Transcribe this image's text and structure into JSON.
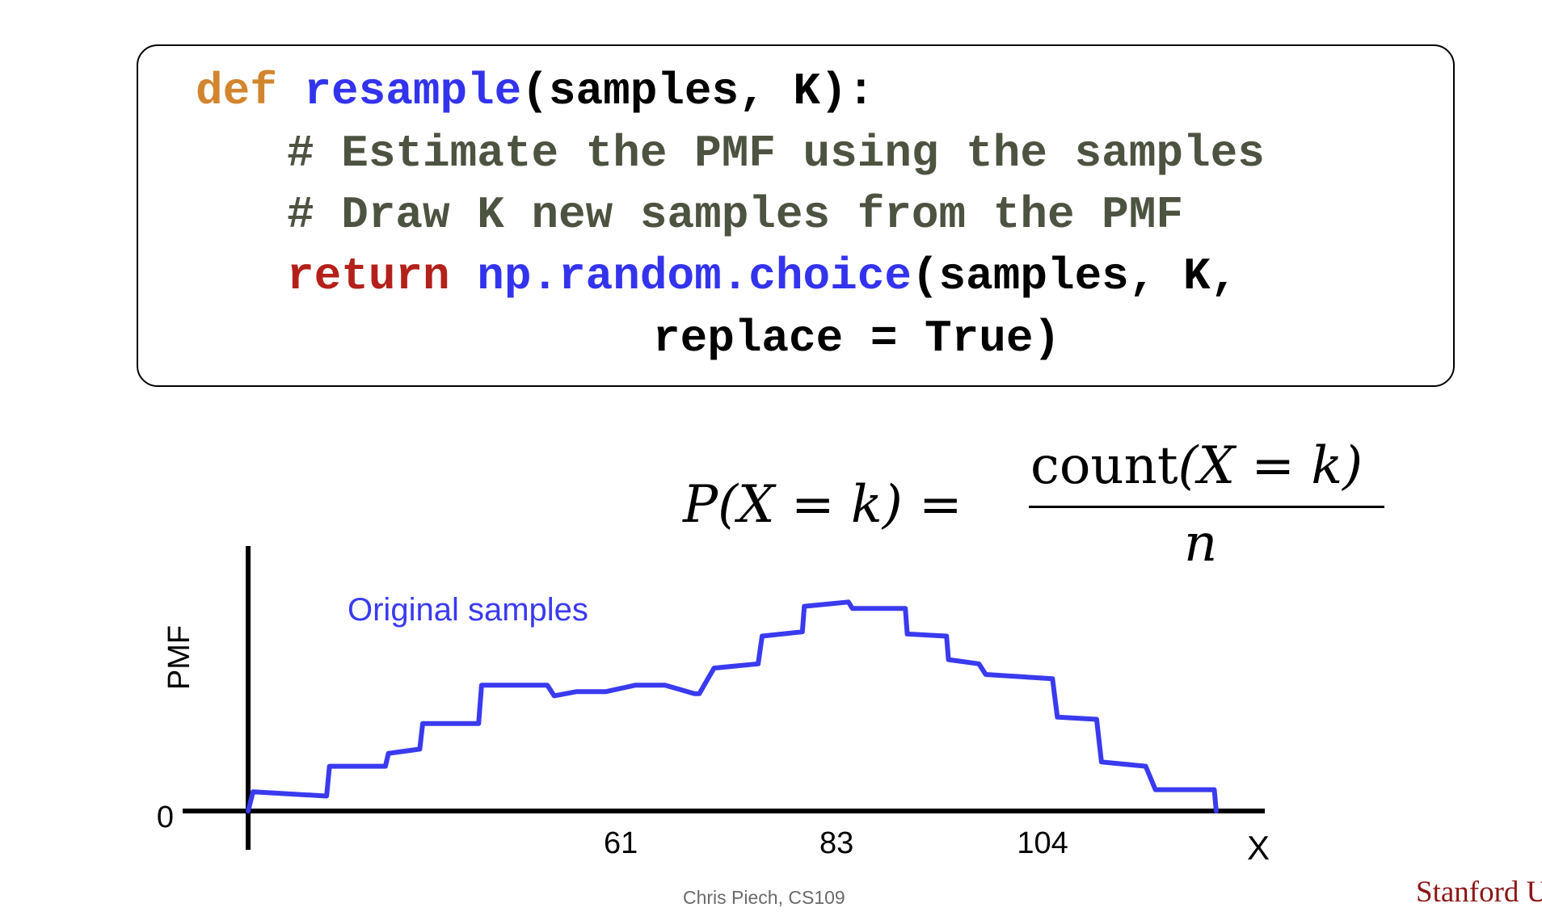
{
  "code": {
    "line1": {
      "kw": "def ",
      "fn": "resample",
      "rest": "(samples, K):"
    },
    "line2": "# Estimate the PMF using the samples",
    "line3": "# Draw K new samples from the PMF",
    "line4": {
      "kw": "return ",
      "fn": "np.random.choice",
      "rest": "(samples, K,"
    },
    "line5": "replace = True)"
  },
  "formula": {
    "lhs": "P(X = k) =",
    "numerator_func": "count",
    "numerator_args": "(X = k)",
    "denominator": "n"
  },
  "chart_data": {
    "type": "line",
    "ylabel": "PMF",
    "xlabel": "X",
    "y_tick_label": "0",
    "x_tick_labels": [
      "61",
      "83",
      "104"
    ],
    "x_ticks": [
      61,
      83,
      104
    ],
    "xlim": [
      23,
      125
    ],
    "ylim": [
      0,
      1
    ],
    "series": [
      {
        "name": "Original samples",
        "color": "#3a3af0",
        "x": [
          23.0,
          23.5,
          31.0,
          31.3,
          37.0,
          37.3,
          40.5,
          40.8,
          46.5,
          46.8,
          53.5,
          54.2,
          56.5,
          59.5,
          62.5,
          65.5,
          68.5,
          69.0,
          70.5,
          75.0,
          75.4,
          79.5,
          79.7,
          84.2,
          84.6,
          90.0,
          90.2,
          94.2,
          94.4,
          97.5,
          98.2,
          105.0,
          105.5,
          109.5,
          110.0,
          114.5,
          115.5,
          121.5,
          121.7
        ],
        "y": [
          0.0,
          0.09,
          0.07,
          0.21,
          0.21,
          0.27,
          0.29,
          0.41,
          0.41,
          0.59,
          0.59,
          0.54,
          0.56,
          0.56,
          0.59,
          0.59,
          0.55,
          0.55,
          0.67,
          0.69,
          0.82,
          0.84,
          0.96,
          0.98,
          0.95,
          0.95,
          0.83,
          0.82,
          0.71,
          0.69,
          0.64,
          0.62,
          0.44,
          0.43,
          0.23,
          0.21,
          0.1,
          0.1,
          0.0
        ]
      }
    ]
  },
  "footer": "Chris Piech, CS109",
  "logo_text": "Stanford U"
}
